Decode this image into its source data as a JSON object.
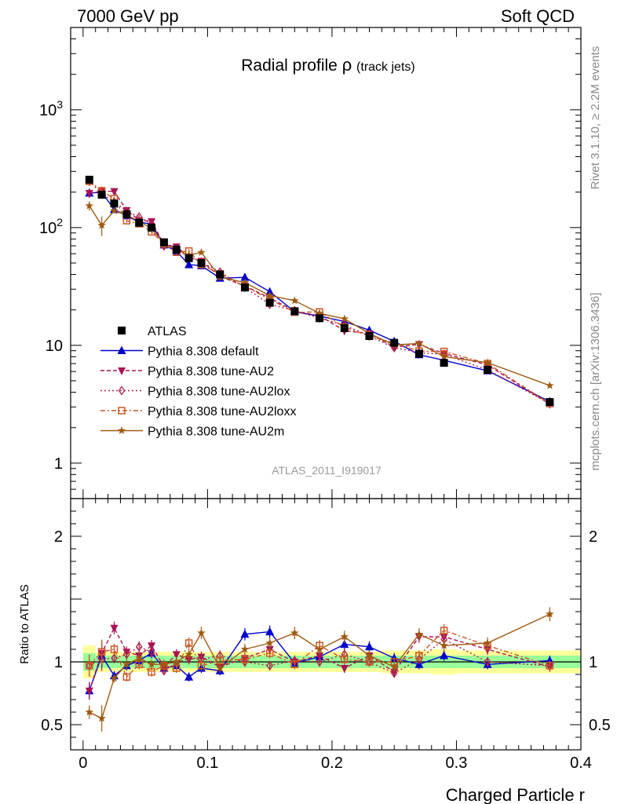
{
  "header": {
    "left": "7000 GeV pp",
    "right": "Soft QCD"
  },
  "side_labels": {
    "rivet": "Rivet 3.1.10, ≥ 2.2M events",
    "mcplots": "mcplots.cern.ch [arXiv:1306.3436]"
  },
  "chart_data": {
    "type": "scatter",
    "title": "Radial profile",
    "title_symbol": "ρ",
    "title_suffix": "(track jets)",
    "analysis_id": "ATLAS_2011_I919017",
    "xlabel": "Charged Particle r",
    "ylabel_ratio": "Ratio to ATLAS",
    "xlim": [
      -0.01,
      0.4
    ],
    "ylim_main": [
      0.5,
      5000
    ],
    "ylim_ratio": [
      0.3,
      2.3
    ],
    "log_y_main": true,
    "x_ticks": [
      "0",
      "0.1",
      "0.2",
      "0.3",
      "0.4"
    ],
    "y_ticks_main": [
      "1",
      "10",
      "10^2",
      "10^3"
    ],
    "y_ticks_ratio": [
      "0.5",
      "1",
      "2"
    ],
    "x": [
      0.005,
      0.015,
      0.025,
      0.035,
      0.045,
      0.055,
      0.065,
      0.075,
      0.085,
      0.095,
      0.11,
      0.13,
      0.15,
      0.17,
      0.19,
      0.21,
      0.23,
      0.25,
      0.27,
      0.29,
      0.325,
      0.375
    ],
    "band_x_edges": [
      0.0,
      0.01,
      0.02,
      0.03,
      0.04,
      0.05,
      0.06,
      0.07,
      0.08,
      0.09,
      0.1,
      0.12,
      0.14,
      0.16,
      0.18,
      0.2,
      0.22,
      0.24,
      0.26,
      0.28,
      0.3,
      0.35,
      0.4
    ],
    "band_green": [
      0.07,
      0.05,
      0.05,
      0.05,
      0.05,
      0.05,
      0.05,
      0.05,
      0.05,
      0.05,
      0.05,
      0.05,
      0.05,
      0.05,
      0.05,
      0.05,
      0.05,
      0.05,
      0.05,
      0.05,
      0.05,
      0.05
    ],
    "band_yellow": [
      0.13,
      0.08,
      0.08,
      0.08,
      0.08,
      0.08,
      0.08,
      0.08,
      0.08,
      0.08,
      0.08,
      0.08,
      0.08,
      0.08,
      0.08,
      0.08,
      0.08,
      0.09,
      0.09,
      0.1,
      0.09,
      0.09
    ],
    "data": {
      "name": "ATLAS",
      "color": "#000000",
      "values": [
        255,
        190,
        160,
        130,
        110,
        100,
        75,
        65,
        55,
        50,
        40,
        31,
        23,
        19.5,
        17,
        14,
        12,
        10.5,
        8.5,
        7.1,
        6.2,
        3.3
      ]
    },
    "series": [
      {
        "name": "Pythia 8.308 default",
        "color": "#0000cc",
        "marker": "triangle-up",
        "dash": "",
        "ratio": [
          0.77,
          1.05,
          0.89,
          0.97,
          1.01,
          1.07,
          0.95,
          0.97,
          0.88,
          0.95,
          0.93,
          1.22,
          1.24,
          0.99,
          1.04,
          1.14,
          1.12,
          1.03,
          0.98,
          1.05,
          0.98,
          1.01
        ]
      },
      {
        "name": "Pythia 8.308 tune-AU2",
        "color": "#aa1155",
        "marker": "triangle-down",
        "dash": "5,3",
        "ratio": [
          0.77,
          1.07,
          1.27,
          1.08,
          1.05,
          1.13,
          0.96,
          1.06,
          1.02,
          1.04,
          0.96,
          1.03,
          1.1,
          1.0,
          1.05,
          0.95,
          1.05,
          0.92,
          1.2,
          1.2,
          1.1,
          0.96
        ]
      },
      {
        "name": "Pythia 8.308 tune-AU2lox",
        "color": "#b0204a",
        "marker": "diamond",
        "dash": "2,3",
        "ratio": [
          0.97,
          1.02,
          1.03,
          1.06,
          1.12,
          1.08,
          0.93,
          0.99,
          1.03,
          1.02,
          1.05,
          1.0,
          0.97,
          1.01,
          1.0,
          1.06,
          1.0,
          0.91,
          1.02,
          1.18,
          1.0,
          0.97
        ]
      },
      {
        "name": "Pythia 8.308 tune-AU2loxx",
        "color": "#cc5522",
        "marker": "square-open",
        "dash": "6,3,2,3",
        "ratio": [
          0.97,
          1.08,
          1.1,
          0.88,
          0.98,
          0.92,
          0.97,
          0.95,
          1.15,
          0.97,
          1.01,
          1.02,
          1.07,
          0.98,
          1.13,
          1.02,
          1.0,
          1.0,
          1.05,
          1.25,
          1.13,
          0.97
        ]
      },
      {
        "name": "Pythia 8.308 tune-AU2m",
        "color": "#a05a10",
        "marker": "star",
        "dash": "",
        "ratio": [
          0.6,
          0.55,
          0.87,
          0.98,
          1.03,
          0.98,
          0.98,
          1.0,
          1.06,
          1.23,
          0.95,
          1.1,
          1.15,
          1.23,
          1.1,
          1.2,
          1.05,
          0.96,
          1.22,
          1.13,
          1.15,
          1.38
        ]
      }
    ]
  }
}
